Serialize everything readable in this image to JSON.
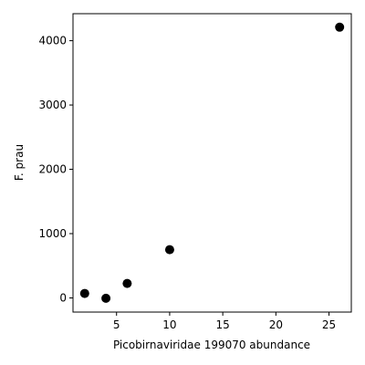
{
  "chart_data": {
    "type": "scatter",
    "xlabel": "Picobirnaviridae 199070 abundance",
    "ylabel": "F. prau",
    "xlim": [
      0.9,
      27.1
    ],
    "ylim": [
      -220,
      4420
    ],
    "xticks": [
      5,
      10,
      15,
      20,
      25
    ],
    "yticks": [
      0,
      1000,
      2000,
      3000,
      4000
    ],
    "grid": false,
    "marker_color": "#000000",
    "points": [
      {
        "x": 2,
        "y": 70
      },
      {
        "x": 4,
        "y": -5
      },
      {
        "x": 6,
        "y": 225
      },
      {
        "x": 10,
        "y": 750
      },
      {
        "x": 26,
        "y": 4210
      }
    ]
  }
}
